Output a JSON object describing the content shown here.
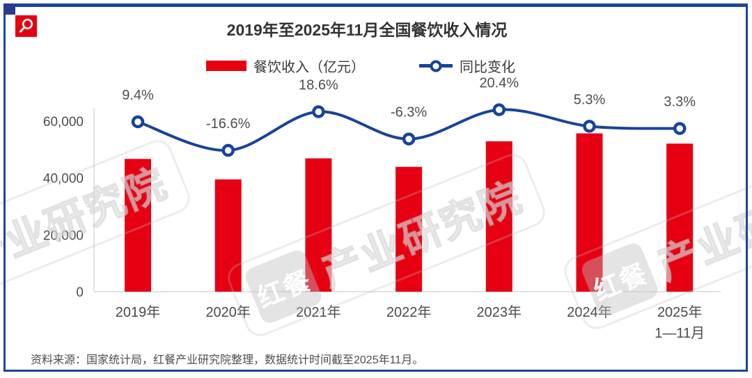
{
  "header": {
    "title": "2019年至2025年11月全国餐饮收入情况"
  },
  "legend": {
    "bar_label": "餐饮收入（亿元）",
    "line_label": "同比变化"
  },
  "chart_data": {
    "type": "bar+line",
    "title": "2019年至2025年11月全国餐饮收入情况",
    "categories": [
      "2019年",
      "2020年",
      "2021年",
      "2022年",
      "2023年",
      "2024年",
      "2025年"
    ],
    "category_sublabels": [
      "",
      "",
      "",
      "",
      "",
      "",
      "1—11月"
    ],
    "series": [
      {
        "name": "餐饮收入（亿元）",
        "type": "bar",
        "axis": "left",
        "unit": "亿元",
        "values": [
          46700,
          39500,
          46900,
          43900,
          52900,
          55700,
          52100
        ],
        "color": "#e60012"
      },
      {
        "name": "同比变化",
        "type": "line",
        "axis": "right",
        "unit": "%",
        "values": [
          9.4,
          -16.6,
          18.6,
          -6.3,
          20.4,
          5.3,
          3.3
        ],
        "labels": [
          "9.4%",
          "-16.6%",
          "18.6%",
          "-6.3%",
          "20.4%",
          "5.3%",
          "3.3%"
        ],
        "color": "#17449b"
      }
    ],
    "yaxis": {
      "tick_labels": [
        "0",
        "20,000",
        "40,000",
        "60,000"
      ],
      "tick_values": [
        0,
        20000,
        40000,
        60000
      ],
      "ylim": [
        0,
        64500
      ]
    },
    "grid": false,
    "legend_position": "top"
  },
  "watermark": {
    "logo_text": "红餐",
    "text": "产业研究院"
  },
  "source": {
    "text": "资料来源：国家统计局，红餐产业研究院整理，数据统计时间截至2025年11月。"
  },
  "colors": {
    "bar_red": "#e60012",
    "line_blue": "#17449b",
    "frame_blue": "#1c459e",
    "corner_navy": "#2c3a92",
    "axis_gray": "#d9d9d9",
    "title_dark": "#333333",
    "label_gray": "#4d4d4d"
  }
}
